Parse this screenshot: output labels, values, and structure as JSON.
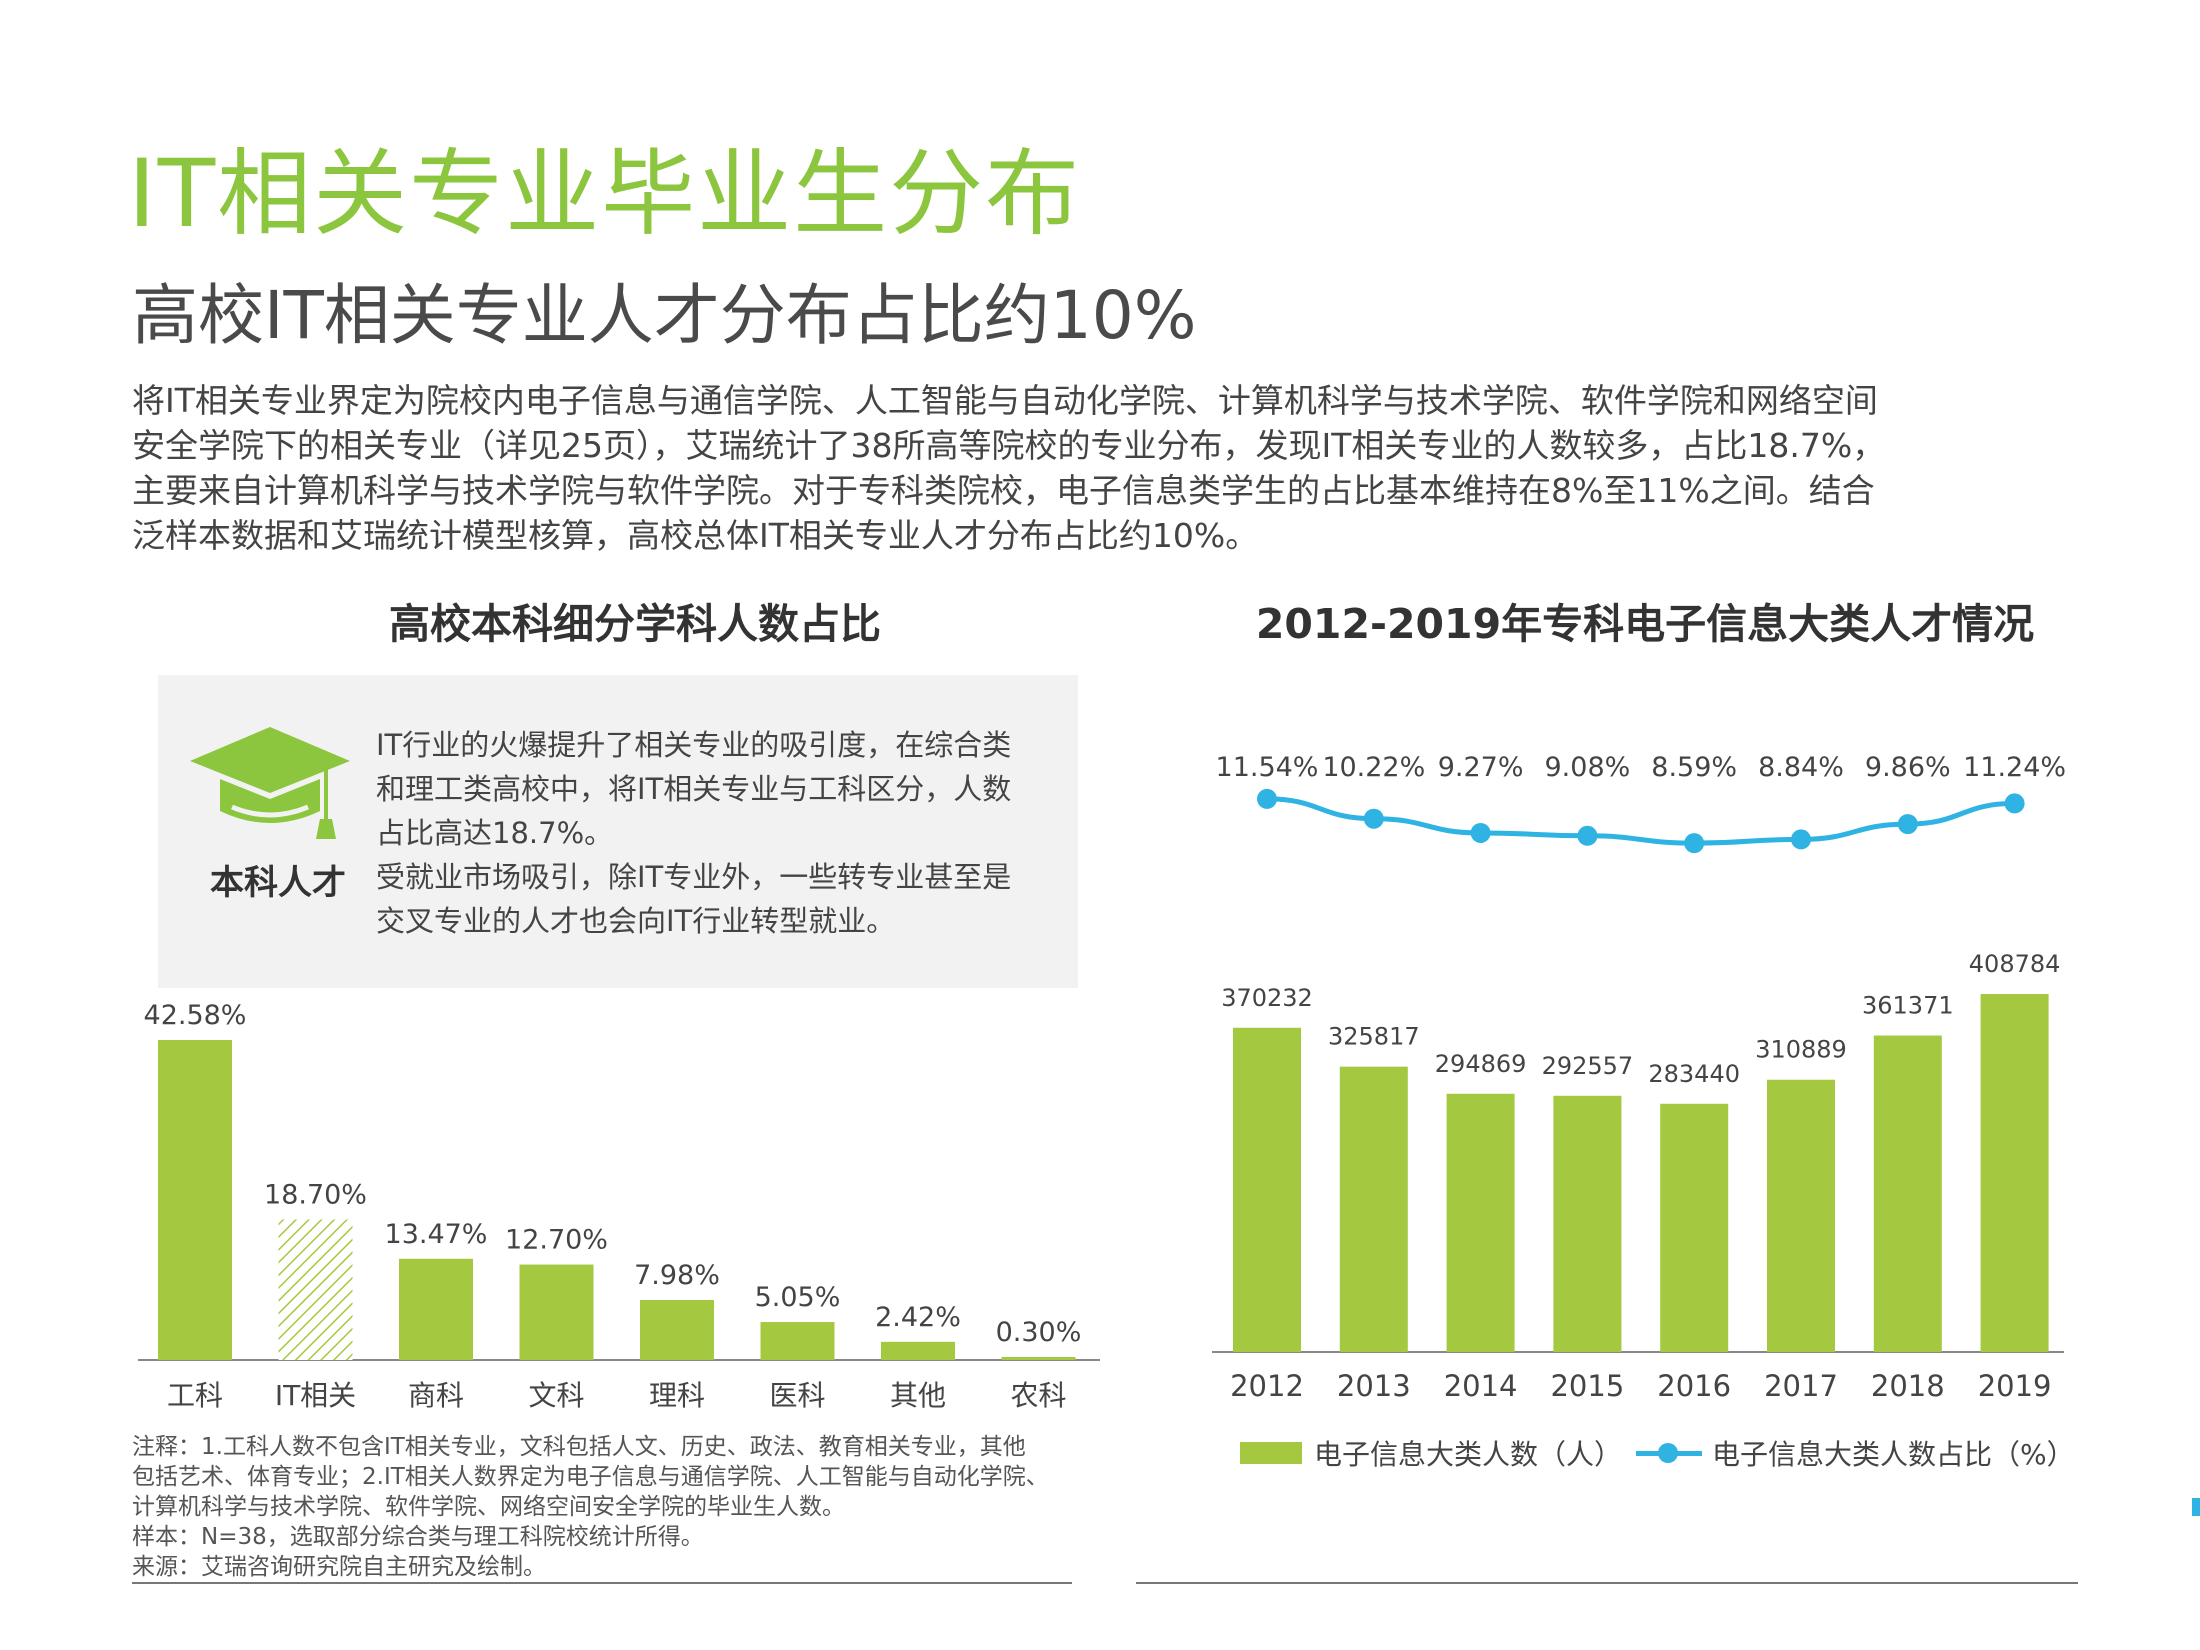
{
  "title": "IT相关专业毕业生分布",
  "subtitle": "高校IT相关专业人才分布占比约10%",
  "intro": [
    "将IT相关专业界定为院校内电子信息与通信学院、人工智能与自动化学院、计算机科学与技术学院、软件学院和网络空间",
    "安全学院下的相关专业（详见25页），艾瑞统计了38所高等院校的专业分布，发现IT相关专业的人数较多，占比18.7%，",
    "主要来自计算机科学与技术学院与软件学院。对于专科类院校，电子信息类学生的占比基本维持在8%至11%之间。结合",
    "泛样本数据和艾瑞统计模型核算，高校总体IT相关专业人才分布占比约10%。"
  ],
  "info_box": {
    "label": "本科人才",
    "icon": "graduation-cap-icon",
    "lines": [
      "IT行业的火爆提升了相关专业的吸引度，在综合类",
      "和理工类高校中，将IT相关专业与工科区分，人数",
      "占比高达18.7%。",
      "受就业市场吸引，除IT专业外，一些转专业甚至是",
      "交叉专业的人才也会向IT行业转型就业。"
    ]
  },
  "notes": [
    "注释：1.工科人数不包含IT相关专业，文科包括人文、历史、政法、教育相关专业，其他",
    "包括艺术、体育专业；2.IT相关人数界定为电子信息与通信学院、人工智能与自动化学院、",
    "计算机科学与技术学院、软件学院、网络空间安全学院的毕业生人数。",
    "样本：N=38，选取部分综合类与理工科院校统计所得。",
    "来源：艾瑞咨询研究院自主研究及绘制。"
  ],
  "colors": {
    "green_title": "#8cc63f",
    "bar": "#a4c940",
    "line": "#2fb3e2"
  },
  "chart_data": [
    {
      "type": "bar",
      "title": "高校本科细分学科人数占比",
      "categories": [
        "工科",
        "IT相关",
        "商科",
        "文科",
        "理科",
        "医科",
        "其他",
        "农科"
      ],
      "values": [
        42.58,
        18.7,
        13.47,
        12.7,
        7.98,
        5.05,
        2.42,
        0.3
      ],
      "labels": [
        "42.58%",
        "18.70%",
        "13.47%",
        "12.70%",
        "7.98%",
        "5.05%",
        "2.42%",
        "0.30%"
      ],
      "highlight": "IT相关",
      "ylim": [
        0,
        45
      ]
    },
    {
      "type": "bar+line",
      "title": "2012-2019年专科电子信息大类人才情况",
      "categories": [
        "2012",
        "2013",
        "2014",
        "2015",
        "2016",
        "2017",
        "2018",
        "2019"
      ],
      "series": [
        {
          "name": "电子信息大类人数（人）",
          "type": "bar",
          "values": [
            370232,
            325817,
            294869,
            292557,
            283440,
            310889,
            361371,
            408784
          ],
          "labels": [
            "370232",
            "325817",
            "294869",
            "292557",
            "283440",
            "310889",
            "361371",
            "408784"
          ]
        },
        {
          "name": "电子信息大类人数占比（%）",
          "type": "line",
          "values": [
            11.54,
            10.22,
            9.27,
            9.08,
            8.59,
            8.84,
            9.86,
            11.24
          ],
          "labels": [
            "11.54%",
            "10.22%",
            "9.27%",
            "9.08%",
            "8.59%",
            "8.84%",
            "9.86%",
            "11.24%"
          ]
        }
      ],
      "bar_ylim": [
        0,
        420000
      ],
      "line_ylim": [
        0,
        100
      ],
      "legend": "bottom"
    }
  ]
}
